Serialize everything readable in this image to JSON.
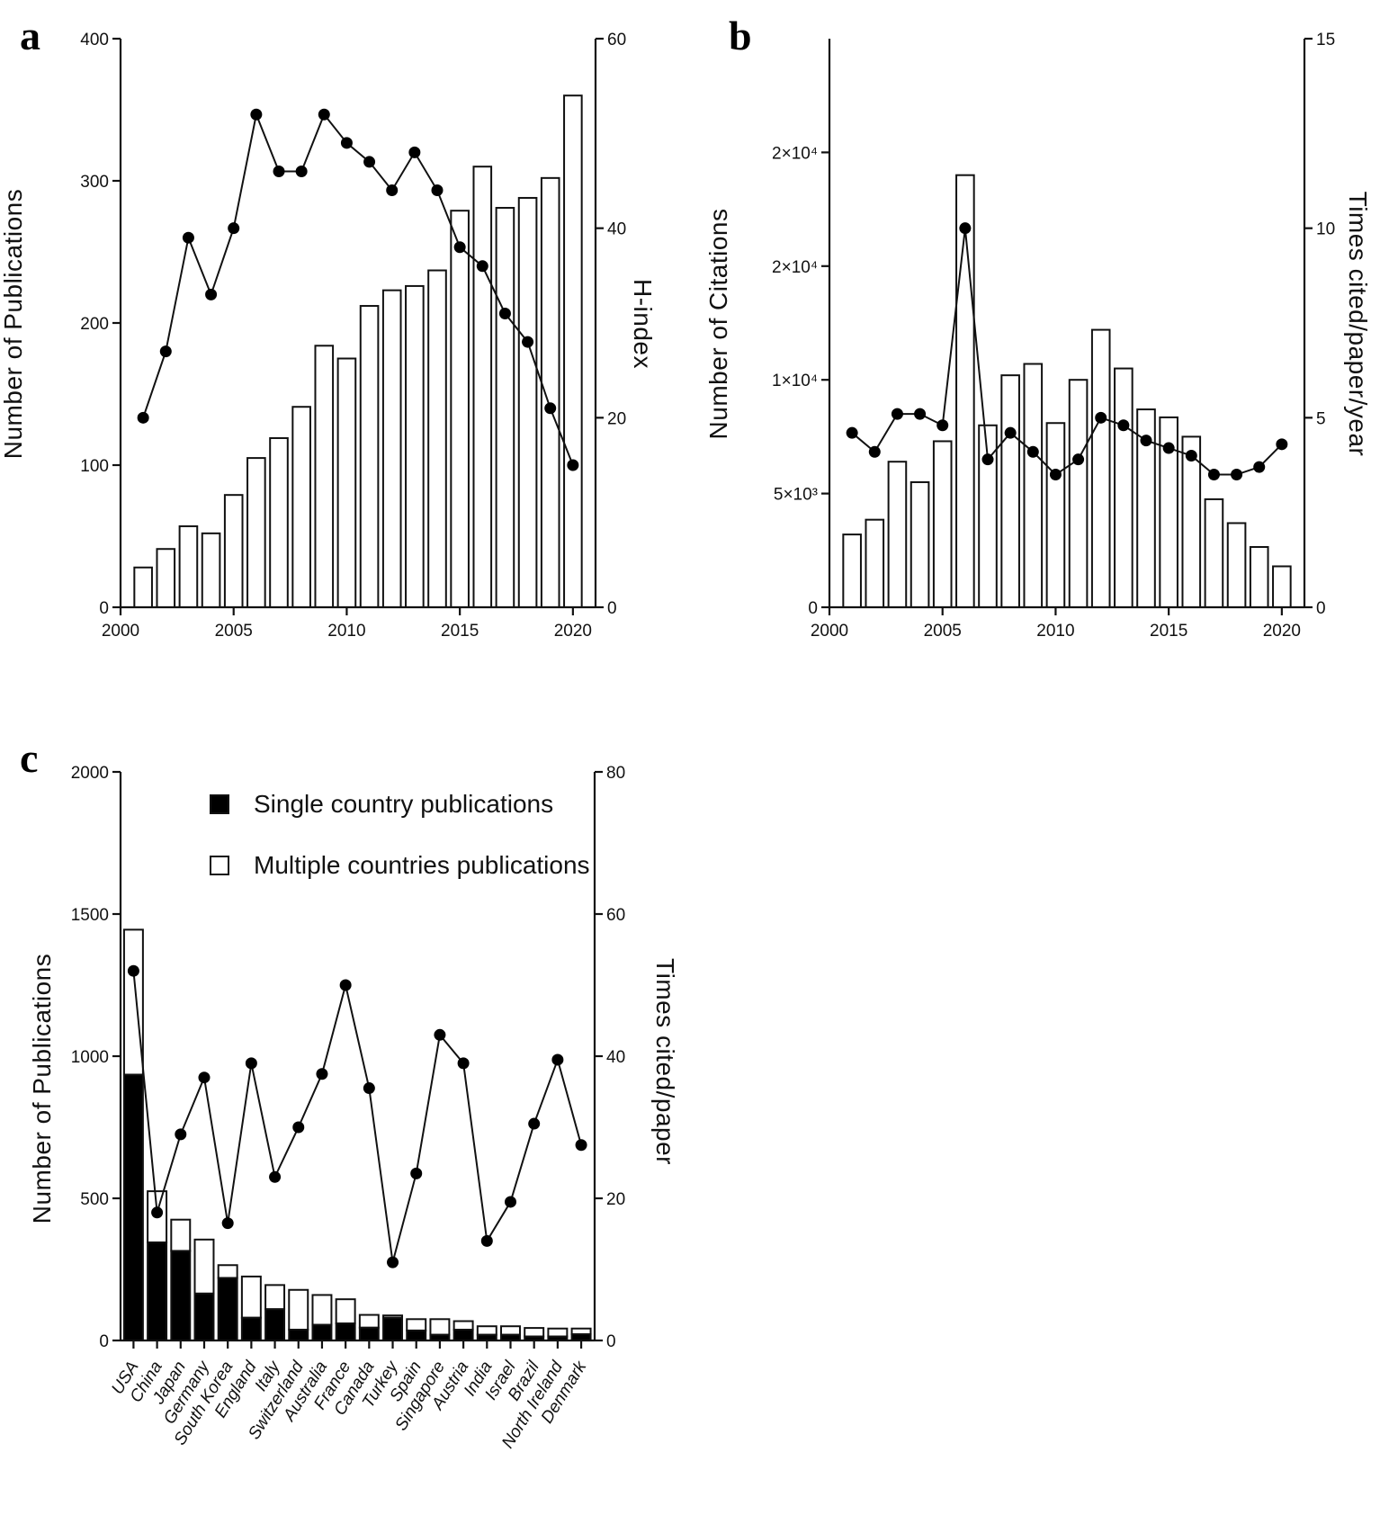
{
  "panels": {
    "a": {
      "label": "a"
    },
    "b": {
      "label": "b"
    },
    "c": {
      "label": "c"
    }
  },
  "chart_data": [
    {
      "id": "a",
      "type": "bar",
      "xlabel": "",
      "ylabel": "Number of Publications",
      "y2label": "H-index",
      "xlim": [
        2000,
        2021
      ],
      "xticks": [
        2000,
        2005,
        2010,
        2015,
        2020
      ],
      "ylim": [
        0,
        400
      ],
      "yticks": [
        0,
        100,
        200,
        300,
        400
      ],
      "y2lim": [
        0,
        60
      ],
      "y2ticks": [
        0,
        20,
        40,
        60
      ],
      "x": [
        2001,
        2002,
        2003,
        2004,
        2005,
        2006,
        2007,
        2008,
        2009,
        2010,
        2011,
        2012,
        2013,
        2014,
        2015,
        2016,
        2017,
        2018,
        2019,
        2020
      ],
      "series": [
        {
          "name": "Number of Publications",
          "kind": "bar",
          "axis": "left",
          "values": [
            28,
            41,
            57,
            52,
            79,
            105,
            119,
            141,
            184,
            175,
            212,
            223,
            226,
            237,
            279,
            310,
            281,
            288,
            302,
            360
          ]
        },
        {
          "name": "H-index",
          "kind": "line",
          "axis": "right",
          "values": [
            20,
            27,
            39,
            33,
            40,
            52,
            46,
            46,
            52,
            49,
            47,
            44,
            48,
            44,
            38,
            36,
            31,
            28,
            21,
            15
          ]
        }
      ]
    },
    {
      "id": "b",
      "type": "bar",
      "xlabel": "",
      "ylabel": "Number of Citations",
      "y2label": "Times cited/paper/year",
      "xlim": [
        2000,
        2021
      ],
      "xticks": [
        2000,
        2005,
        2010,
        2015,
        2020
      ],
      "ylim": [
        0,
        25000
      ],
      "yticks": [
        0,
        5000,
        10000,
        15000,
        20000
      ],
      "yticklabels": [
        "0",
        "5×10³",
        "1×10⁴",
        "2×10⁴",
        "2×10⁴"
      ],
      "y2lim": [
        0,
        15
      ],
      "y2ticks": [
        0,
        5,
        10,
        15
      ],
      "x": [
        2001,
        2002,
        2003,
        2004,
        2005,
        2006,
        2007,
        2008,
        2009,
        2010,
        2011,
        2012,
        2013,
        2014,
        2015,
        2016,
        2017,
        2018,
        2019,
        2020
      ],
      "series": [
        {
          "name": "Number of Citations",
          "kind": "bar",
          "axis": "left",
          "values": [
            3200,
            3850,
            6400,
            5500,
            7300,
            19000,
            8000,
            10200,
            10700,
            8100,
            10000,
            12200,
            10500,
            8700,
            8350,
            7500,
            4750,
            3700,
            2650,
            1800
          ]
        },
        {
          "name": "Times cited/paper/year",
          "kind": "line",
          "axis": "right",
          "values": [
            4.6,
            4.1,
            5.1,
            5.1,
            4.8,
            10.0,
            3.9,
            4.6,
            4.1,
            3.5,
            3.9,
            5.0,
            4.8,
            4.4,
            4.2,
            4.0,
            3.5,
            3.5,
            3.7,
            4.3
          ]
        }
      ]
    },
    {
      "id": "c",
      "type": "bar",
      "xlabel": "",
      "ylabel": "Number of Publications",
      "y2label": "Times cited/paper",
      "ylim": [
        0,
        2000
      ],
      "yticks": [
        0,
        500,
        1000,
        1500,
        2000
      ],
      "y2lim": [
        0,
        80
      ],
      "y2ticks": [
        0,
        20,
        40,
        60,
        80
      ],
      "legend": [
        "Single country publications",
        "Multiple countries publications"
      ],
      "categories": [
        "USA",
        "China",
        "Japan",
        "Germany",
        "South Korea",
        "England",
        "Italy",
        "Switzerland",
        "Australia",
        "France",
        "Canada",
        "Turkey",
        "Spain",
        "Singapore",
        "Austria",
        "India",
        "Israel",
        "Brazil",
        "North Ireland",
        "Denmark"
      ],
      "series": [
        {
          "name": "Single country publications",
          "kind": "stacked-bar",
          "axis": "left",
          "values": [
            935,
            345,
            315,
            165,
            220,
            80,
            110,
            38,
            55,
            60,
            45,
            80,
            35,
            20,
            38,
            20,
            20,
            14,
            14,
            22
          ]
        },
        {
          "name": "Multiple countries publications",
          "kind": "stacked-bar",
          "axis": "left",
          "values": [
            510,
            180,
            110,
            190,
            45,
            145,
            85,
            140,
            105,
            85,
            45,
            8,
            40,
            55,
            30,
            30,
            30,
            30,
            28,
            20
          ]
        },
        {
          "name": "Times cited/paper",
          "kind": "line",
          "axis": "right",
          "values": [
            52,
            18,
            29,
            37,
            16.5,
            39,
            23,
            30,
            37.5,
            50,
            35.5,
            11,
            23.5,
            43,
            39,
            14,
            19.5,
            30.5,
            39.5,
            27.5
          ]
        }
      ]
    }
  ]
}
